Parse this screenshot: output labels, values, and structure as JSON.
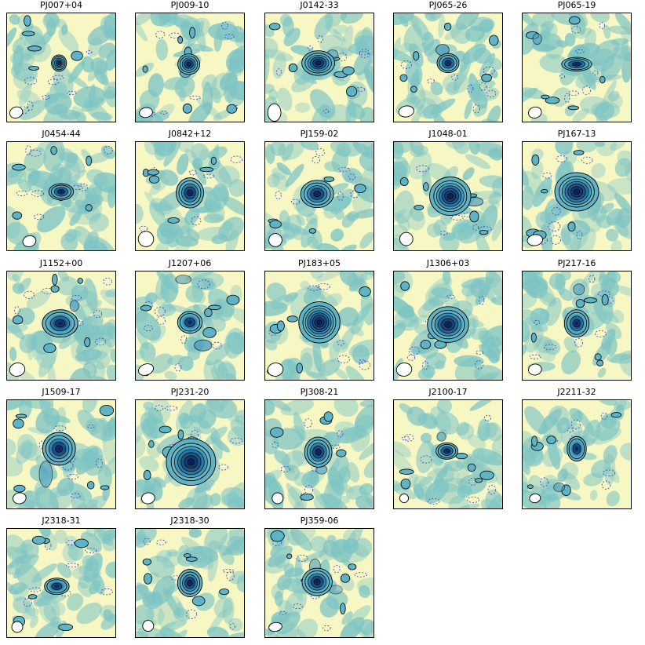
{
  "figure": {
    "panels": [
      {
        "label": "PJ007+04",
        "beam": [
          0.09,
          0.09,
          0.06,
          0.05,
          -20
        ],
        "src": [
          0.48,
          0.46,
          0.055,
          0.06,
          4
        ],
        "extra": []
      },
      {
        "label": "PJ009-10",
        "beam": [
          0.1,
          0.09,
          0.06,
          0.045,
          -10
        ],
        "src": [
          0.49,
          0.47,
          0.08,
          0.075,
          4
        ],
        "extra": [
          [
            0.46,
            0.55,
            0.05,
            0.04,
            0.7
          ]
        ]
      },
      {
        "label": "J0142-33",
        "beam": [
          0.09,
          0.09,
          0.06,
          0.08,
          0
        ],
        "src": [
          0.49,
          0.46,
          0.12,
          0.09,
          5
        ],
        "extra": [
          [
            0.62,
            0.38,
            0.05,
            0.04,
            0.6
          ]
        ]
      },
      {
        "label": "PJ065-26",
        "beam": [
          0.12,
          0.1,
          0.07,
          0.05,
          -10
        ],
        "src": [
          0.5,
          0.46,
          0.08,
          0.07,
          3
        ],
        "extra": [
          [
            0.45,
            0.34,
            0.06,
            0.05,
            0.7
          ]
        ]
      },
      {
        "label": "PJ065-19",
        "beam": [
          0.12,
          0.09,
          0.06,
          0.05,
          -15
        ],
        "src": [
          0.5,
          0.47,
          0.11,
          0.05,
          3
        ],
        "extra": [
          [
            0.14,
            0.24,
            0.04,
            0.05,
            0.6
          ]
        ]
      },
      {
        "label": "J0454-44",
        "beam": [
          0.21,
          0.09,
          0.06,
          0.05,
          -15
        ],
        "src": [
          0.5,
          0.46,
          0.09,
          0.06,
          3
        ],
        "extra": []
      },
      {
        "label": "J0842+12",
        "beam": [
          0.1,
          0.11,
          0.07,
          0.07,
          -10
        ],
        "src": [
          0.5,
          0.47,
          0.1,
          0.11,
          4
        ],
        "extra": []
      },
      {
        "label": "PJ159-02",
        "beam": [
          0.1,
          0.1,
          0.06,
          0.06,
          0
        ],
        "src": [
          0.48,
          0.48,
          0.12,
          0.1,
          4
        ],
        "extra": []
      },
      {
        "label": "J1048-01",
        "beam": [
          0.12,
          0.11,
          0.06,
          0.06,
          -5
        ],
        "src": [
          0.52,
          0.5,
          0.15,
          0.14,
          6
        ],
        "extra": [
          [
            0.74,
            0.55,
            0.08,
            0.04,
            0.7
          ]
        ]
      },
      {
        "label": "PJ167-13",
        "beam": [
          0.12,
          0.1,
          0.07,
          0.05,
          -10
        ],
        "src": [
          0.5,
          0.46,
          0.16,
          0.14,
          6
        ],
        "extra": [
          [
            0.58,
            0.42,
            0.05,
            0.04,
            0.5
          ]
        ]
      },
      {
        "label": "J1152+00",
        "beam": [
          0.1,
          0.1,
          0.07,
          0.06,
          -15
        ],
        "src": [
          0.49,
          0.48,
          0.13,
          0.1,
          3
        ],
        "extra": [
          [
            0.62,
            0.32,
            0.04,
            0.05,
            0.6
          ]
        ]
      },
      {
        "label": "J1207+06",
        "beam": [
          0.1,
          0.1,
          0.07,
          0.05,
          -20
        ],
        "src": [
          0.5,
          0.47,
          0.09,
          0.08,
          2
        ],
        "extra": [
          [
            0.62,
            0.68,
            0.08,
            0.05,
            0.7
          ],
          [
            0.44,
            0.08,
            0.07,
            0.04,
            0.6
          ]
        ]
      },
      {
        "label": "PJ183+05",
        "beam": [
          0.1,
          0.1,
          0.07,
          0.06,
          -10
        ],
        "src": [
          0.5,
          0.47,
          0.15,
          0.15,
          7
        ],
        "extra": []
      },
      {
        "label": "J1306+03",
        "beam": [
          0.1,
          0.1,
          0.07,
          0.06,
          -10
        ],
        "src": [
          0.5,
          0.49,
          0.15,
          0.13,
          5
        ],
        "extra": []
      },
      {
        "label": "PJ217-16",
        "beam": [
          0.12,
          0.1,
          0.06,
          0.05,
          -10
        ],
        "src": [
          0.5,
          0.48,
          0.09,
          0.1,
          3
        ],
        "extra": [
          [
            0.52,
            0.17,
            0.05,
            0.05,
            0.6
          ]
        ]
      },
      {
        "label": "J1509-17",
        "beam": [
          0.12,
          0.1,
          0.06,
          0.05,
          -10
        ],
        "src": [
          0.48,
          0.45,
          0.12,
          0.12,
          4
        ],
        "extra": [
          [
            0.36,
            0.68,
            0.06,
            0.12,
            0.6
          ]
        ]
      },
      {
        "label": "PJ231-20",
        "beam": [
          0.12,
          0.1,
          0.06,
          0.05,
          -10
        ],
        "src": [
          0.51,
          0.57,
          0.18,
          0.17,
          6
        ],
        "extra": [
          [
            0.52,
            0.42,
            0.07,
            0.08,
            0.8
          ]
        ]
      },
      {
        "label": "PJ308-21",
        "beam": [
          0.12,
          0.1,
          0.05,
          0.05,
          -10
        ],
        "src": [
          0.49,
          0.48,
          0.1,
          0.11,
          4
        ],
        "extra": [
          [
            0.52,
            0.64,
            0.05,
            0.04,
            0.6
          ]
        ]
      },
      {
        "label": "J2100-17",
        "beam": [
          0.1,
          0.1,
          0.04,
          0.04,
          0
        ],
        "src": [
          0.49,
          0.47,
          0.08,
          0.06,
          3
        ],
        "extra": [
          [
            0.44,
            0.34,
            0.04,
            0.04,
            0.5
          ]
        ]
      },
      {
        "label": "J2211-32",
        "beam": [
          0.12,
          0.1,
          0.05,
          0.04,
          -10
        ],
        "src": [
          0.5,
          0.45,
          0.07,
          0.09,
          2
        ],
        "extra": [
          [
            0.34,
            0.8,
            0.05,
            0.04,
            0.6
          ]
        ]
      },
      {
        "label": "J2318-31",
        "beam": [
          0.1,
          0.1,
          0.05,
          0.05,
          0
        ],
        "src": [
          0.46,
          0.53,
          0.09,
          0.06,
          2
        ],
        "extra": []
      },
      {
        "label": "J2318-30",
        "beam": [
          0.12,
          0.11,
          0.05,
          0.05,
          -10
        ],
        "src": [
          0.5,
          0.5,
          0.09,
          0.1,
          4
        ],
        "extra": []
      },
      {
        "label": "PJ359-06",
        "beam": [
          0.1,
          0.1,
          0.06,
          0.04,
          -10
        ],
        "src": [
          0.48,
          0.49,
          0.11,
          0.1,
          4
        ],
        "extra": [
          [
            0.46,
            0.35,
            0.05,
            0.07,
            0.6
          ],
          [
            0.65,
            0.56,
            0.06,
            0.04,
            0.5
          ]
        ]
      }
    ]
  },
  "colors": {
    "low": "#f7f7c4",
    "mid": "#7dc4c4",
    "high": "#08164f",
    "contour": "#000000",
    "negative_contour": "#3a3ad0",
    "frame": "#000000"
  }
}
